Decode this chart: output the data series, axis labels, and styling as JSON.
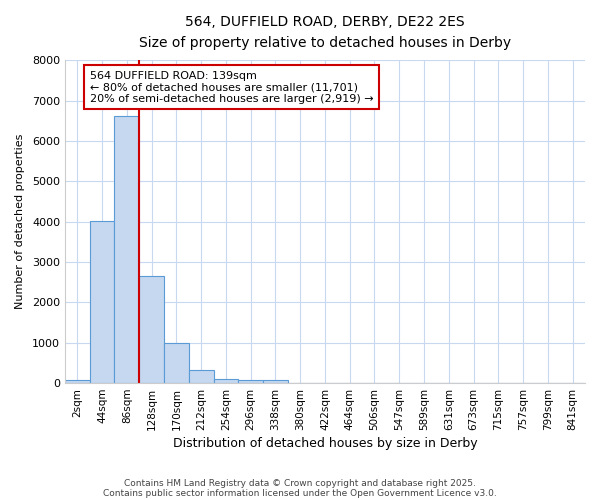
{
  "title": "564, DUFFIELD ROAD, DERBY, DE22 2ES",
  "subtitle": "Size of property relative to detached houses in Derby",
  "xlabel": "Distribution of detached houses by size in Derby",
  "ylabel": "Number of detached properties",
  "categories": [
    "2sqm",
    "44sqm",
    "86sqm",
    "128sqm",
    "170sqm",
    "212sqm",
    "254sqm",
    "296sqm",
    "338sqm",
    "380sqm",
    "422sqm",
    "464sqm",
    "506sqm",
    "547sqm",
    "589sqm",
    "631sqm",
    "673sqm",
    "715sqm",
    "757sqm",
    "799sqm",
    "841sqm"
  ],
  "bar_values": [
    80,
    4020,
    6630,
    2650,
    1000,
    330,
    110,
    80,
    80,
    0,
    0,
    0,
    0,
    0,
    0,
    0,
    0,
    0,
    0,
    0,
    0
  ],
  "bar_color": "#c5d8f0",
  "bar_edge_color": "#5b9bd5",
  "bar_width": 1.0,
  "ylim": [
    0,
    8000
  ],
  "yticks": [
    0,
    1000,
    2000,
    3000,
    4000,
    5000,
    6000,
    7000,
    8000
  ],
  "vline_x": 2.5,
  "vline_color": "#cc0000",
  "annotation_text": "564 DUFFIELD ROAD: 139sqm\n← 80% of detached houses are smaller (11,701)\n20% of semi-detached houses are larger (2,919) →",
  "annotation_box_color": "#cc0000",
  "bg_color": "#ffffff",
  "grid_color": "#c8d8f0",
  "footer_line1": "Contains HM Land Registry data © Crown copyright and database right 2025.",
  "footer_line2": "Contains public sector information licensed under the Open Government Licence v3.0."
}
